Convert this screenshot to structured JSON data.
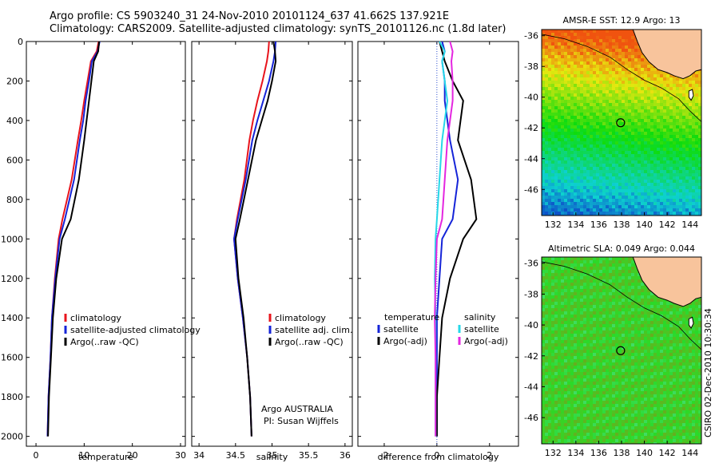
{
  "header": {
    "line1": "Argo profile: CS 5903240_31 24-Nov-2010 20101124_637 41.662S 137.921E",
    "line2": "Climatology: CARS2009. Satellite-adjusted climatology: synTS_20101126.nc (1.8d later)"
  },
  "colors": {
    "climatology": "#e8141c",
    "satellite": "#1524d8",
    "argo": "#000000",
    "salinity_satellite": "#26d8e8",
    "salinity_argo": "#e426e0",
    "land": "#f8c49c"
  },
  "sst_map": {
    "title": "AMSR-E SST: 12.9 Argo: 13",
    "lat_ticks": [
      "-36",
      "-38",
      "-40",
      "-42",
      "-44",
      "-46"
    ],
    "lon_ticks": [
      "132",
      "134",
      "136",
      "138",
      "140",
      "142",
      "144"
    ],
    "float_position": {
      "lon": 137.921,
      "lat": -41.662
    }
  },
  "sla_map": {
    "title": "Altimetric SLA: 0.049 Argo: 0.044",
    "lat_ticks": [
      "-36",
      "-38",
      "-40",
      "-42",
      "-44",
      "-46"
    ],
    "lon_ticks": [
      "132",
      "134",
      "136",
      "138",
      "140",
      "142",
      "144"
    ],
    "float_position": {
      "lon": 137.921,
      "lat": -41.662
    }
  },
  "stamp": "CSIRO 02-Dec-2010 10:30:34",
  "chart_data": [
    {
      "type": "line",
      "xlabel": "temperature",
      "ylabel": "",
      "xlim": [
        -2,
        31
      ],
      "ylim": [
        0,
        2050
      ],
      "y_reversed": true,
      "xticks": [
        "0",
        "10",
        "20",
        "30"
      ],
      "yticks": [
        "0",
        "200",
        "400",
        "600",
        "800",
        "1000",
        "1200",
        "1400",
        "1600",
        "1800",
        "2000"
      ],
      "legend": [
        "climatology",
        "satellite-adjusted climatology",
        "Argo(..raw -QC)"
      ],
      "legend_placement": "bottom-right",
      "series": [
        {
          "name": "climatology",
          "color": "#e8141c",
          "x": [
            13.0,
            12.6,
            11.4,
            10.7,
            10.0,
            9.4,
            8.7,
            7.4,
            5.5,
            4.7,
            3.9,
            3.3,
            3.0,
            2.6,
            2.4
          ],
          "y": [
            0,
            50,
            100,
            200,
            300,
            400,
            500,
            700,
            900,
            1000,
            1200,
            1400,
            1600,
            1800,
            2000
          ]
        },
        {
          "name": "satellite-adjusted climatology",
          "color": "#1524d8",
          "x": [
            13.2,
            12.8,
            11.6,
            11.0,
            10.3,
            9.8,
            9.1,
            7.9,
            6.0,
            4.9,
            4.0,
            3.3,
            3.0,
            2.6,
            2.4
          ],
          "y": [
            0,
            50,
            100,
            200,
            300,
            400,
            500,
            700,
            900,
            1000,
            1200,
            1400,
            1600,
            1800,
            2000
          ]
        },
        {
          "name": "Argo(..raw -QC)",
          "color": "#000000",
          "x": [
            13.1,
            12.9,
            12.0,
            11.5,
            11.0,
            10.5,
            10.0,
            8.9,
            7.2,
            5.4,
            4.2,
            3.5,
            3.1,
            2.7,
            2.5
          ],
          "y": [
            0,
            50,
            100,
            200,
            300,
            400,
            500,
            700,
            900,
            1000,
            1200,
            1400,
            1600,
            1800,
            2000
          ]
        }
      ]
    },
    {
      "type": "line",
      "xlabel": "salinity",
      "ylabel": "",
      "xlim": [
        33.9,
        36.1
      ],
      "ylim": [
        0,
        2050
      ],
      "y_reversed": true,
      "xticks": [
        "34",
        "34.5",
        "35",
        "35.5",
        "36"
      ],
      "legend": [
        "climatology",
        "satellite adj. clim.",
        "Argo(..raw -QC)"
      ],
      "legend_placement": "bottom-right",
      "annotation": [
        "Argo AUSTRALIA",
        "PI: Susan Wijffels"
      ],
      "series": [
        {
          "name": "climatology",
          "color": "#e8141c",
          "x": [
            34.96,
            34.95,
            34.93,
            34.87,
            34.8,
            34.74,
            34.69,
            34.62,
            34.52,
            34.48,
            34.53,
            34.6,
            34.66,
            34.7,
            34.72
          ],
          "y": [
            0,
            50,
            100,
            200,
            300,
            400,
            500,
            700,
            900,
            1000,
            1200,
            1400,
            1600,
            1800,
            2000
          ]
        },
        {
          "name": "satellite adj. clim.",
          "color": "#1524d8",
          "x": [
            35.05,
            35.04,
            35.02,
            34.96,
            34.88,
            34.8,
            34.73,
            34.64,
            34.53,
            34.48,
            34.53,
            34.6,
            34.66,
            34.7,
            34.72
          ],
          "y": [
            0,
            50,
            100,
            200,
            300,
            400,
            500,
            700,
            900,
            1000,
            1200,
            1400,
            1600,
            1800,
            2000
          ]
        },
        {
          "name": "Argo(..raw -QC)",
          "color": "#000000",
          "x": [
            35.02,
            35.04,
            35.05,
            35.0,
            34.94,
            34.86,
            34.78,
            34.67,
            34.56,
            34.5,
            34.54,
            34.61,
            34.66,
            34.7,
            34.72
          ],
          "y": [
            0,
            50,
            100,
            200,
            300,
            400,
            500,
            700,
            900,
            1000,
            1200,
            1400,
            1600,
            1800,
            2000
          ]
        }
      ]
    },
    {
      "type": "line",
      "xlabel": "difference from climatology",
      "ylabel": "",
      "xlim": [
        -3,
        3.1
      ],
      "ylim": [
        0,
        2050
      ],
      "y_reversed": true,
      "xticks": [
        "-2",
        "0",
        "2"
      ],
      "legend": [
        "temperature",
        "satellite",
        "Argo(-adj)",
        "salinity",
        "satellite",
        "Argo(-adj)"
      ],
      "legend_placement": "bottom",
      "series": [
        {
          "name": "satellite",
          "color": "#1524d8",
          "x": [
            0.2,
            0.3,
            0.2,
            0.3,
            0.3,
            0.4,
            0.5,
            0.8,
            0.6,
            0.2,
            0.1,
            0.0,
            0.0,
            0.0,
            0.0
          ],
          "y": [
            0,
            50,
            100,
            200,
            300,
            400,
            500,
            700,
            900,
            1000,
            1200,
            1400,
            1600,
            1800,
            2000
          ]
        },
        {
          "name": "Argo(-adj)",
          "color": "#000000",
          "x": [
            0.1,
            0.2,
            0.3,
            0.6,
            1.0,
            0.9,
            0.8,
            1.3,
            1.5,
            1.0,
            0.5,
            0.2,
            0.1,
            0.0,
            0.0
          ],
          "y": [
            0,
            50,
            100,
            200,
            300,
            400,
            500,
            700,
            900,
            1000,
            1200,
            1400,
            1600,
            1800,
            2000
          ]
        },
        {
          "name": "satellite",
          "color": "#26d8e8",
          "x": [
            0.1,
            0.3,
            0.2,
            0.3,
            0.4,
            0.3,
            0.2,
            0.1,
            0.0,
            -0.05,
            -0.08,
            -0.05,
            -0.05,
            -0.05,
            -0.05
          ],
          "y": [
            0,
            50,
            100,
            200,
            300,
            400,
            500,
            700,
            900,
            1000,
            1200,
            1400,
            1600,
            1800,
            2000
          ]
        },
        {
          "name": "Argo(-adj)",
          "color": "#e426e0",
          "x": [
            0.5,
            0.6,
            0.55,
            0.6,
            0.6,
            0.5,
            0.4,
            0.3,
            0.2,
            0.0,
            -0.05,
            -0.08,
            -0.05,
            -0.05,
            -0.05
          ],
          "y": [
            0,
            50,
            100,
            200,
            300,
            400,
            500,
            700,
            900,
            1000,
            1200,
            1400,
            1600,
            1800,
            2000
          ]
        }
      ]
    }
  ]
}
